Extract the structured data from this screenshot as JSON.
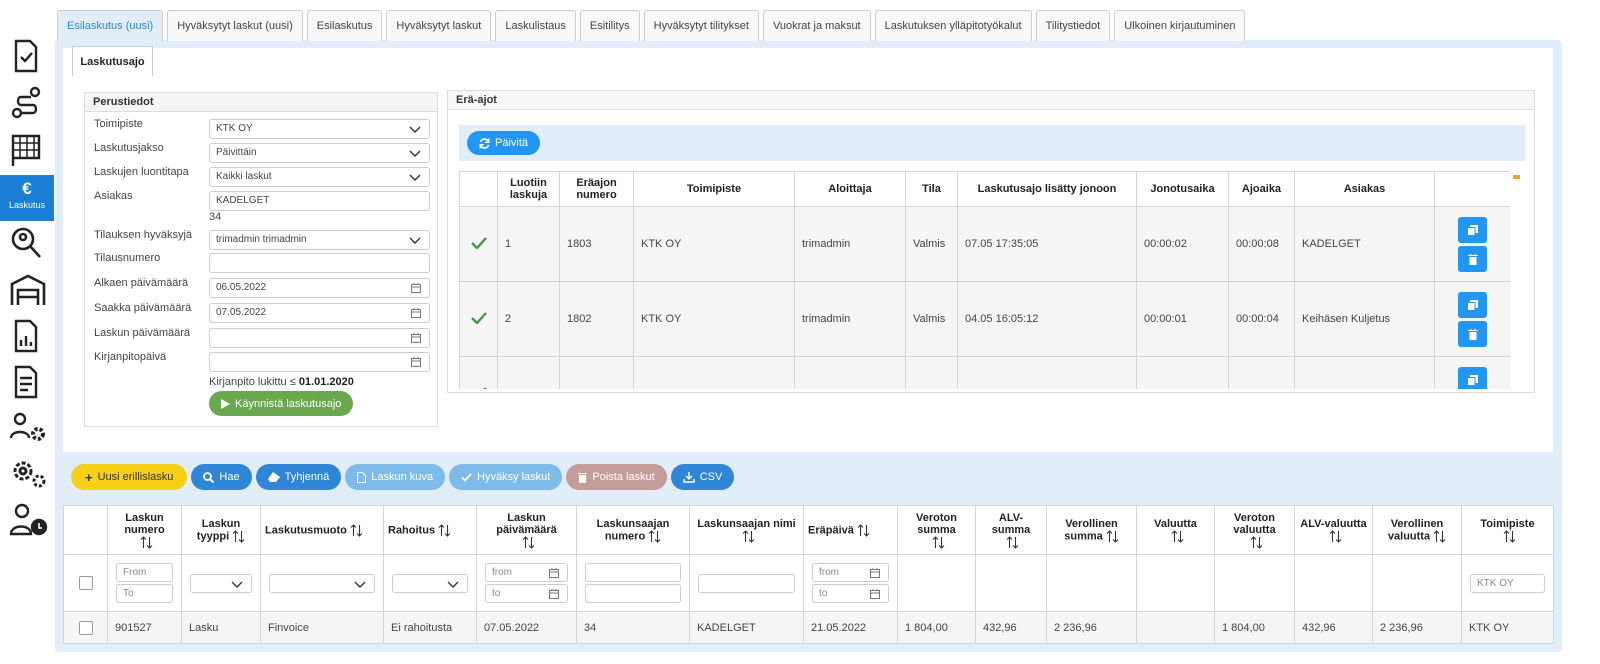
{
  "sidebar": {
    "active_icon": "€",
    "active_label": "Laskutus"
  },
  "tabs": [
    "Esilaskutus (uusi)",
    "Hyväksytyt laskut (uusi)",
    "Esilaskutus",
    "Hyväksytyt laskut",
    "Laskulistaus",
    "Esitilitys",
    "Hyväksytyt tilitykset",
    "Vuokrat ja maksut",
    "Laskutuksen ylläpitotyökalut",
    "Tilitystiedot",
    "Ulkoinen kirjautuminen"
  ],
  "subtab": "Laskutusajo",
  "perustiedot": {
    "title": "Perustiedot",
    "fields": [
      {
        "label": "Toimipiste",
        "value": "KTK OY"
      },
      {
        "label": "Laskutusjakso",
        "value": "Päivittäin"
      },
      {
        "label": "Laskujen luontitapa",
        "value": "Kaikki laskut"
      },
      {
        "label": "Asiakas",
        "value": "KADELGET",
        "note": "34"
      },
      {
        "label": "Tilauksen hyväksyjä",
        "value": "trimadmin trimadmin"
      },
      {
        "label": "Tilausnumero"
      },
      {
        "label": "Alkaen päivämäärä",
        "value": "06.05.2022"
      },
      {
        "label": "Saakka päivämäärä",
        "value": "07.05.2022"
      },
      {
        "label": "Laskun päivämäärä"
      },
      {
        "label": "Kirjanpitopäivä"
      }
    ],
    "lock_text": "Kirjanpito lukittu ≤",
    "lock_date": "01.01.2020",
    "start_button": "Käynnistä laskutusajo"
  },
  "era_ajot": {
    "title": "Erä-ajot",
    "refresh_button": "Päivitä",
    "headers": [
      "Luotiin laskuja",
      "Eräajon numero",
      "Toimipiste",
      "Aloittaja",
      "Tila",
      "Laskutusajo lisätty jonoon",
      "Jonotusaika",
      "Ajoaika",
      "Asiakas"
    ],
    "rows": [
      [
        "1",
        "1803",
        "KTK OY",
        "trimadmin",
        "Valmis",
        "07.05 17:35:05",
        "00:00:02",
        "00:00:08",
        "KADELGET"
      ],
      [
        "2",
        "1802",
        "KTK OY",
        "trimadmin",
        "Valmis",
        "04.05 16:05:12",
        "00:00:01",
        "00:00:04",
        "Keihäsen Kuljetus"
      ]
    ]
  },
  "toolbar": [
    "Uusi erillislasku",
    "Hae",
    "Tyhjennä",
    "Laskun kuva",
    "Hyväksy laskut",
    "Poista laskut",
    "CSV"
  ],
  "invoices": {
    "headers": [
      "Laskun numero",
      "Laskun tyyppi",
      "Laskutusmuoto",
      "Rahoitus",
      "Laskun päivämäärä",
      "Laskunsaajan numero",
      "Laskunsaajan nimi",
      "Eräpäivä",
      "Veroton summa",
      "ALV-summa",
      "Verollinen summa",
      "Valuutta",
      "Veroton valuutta",
      "ALV-valuutta",
      "Verollinen valuutta",
      "Toimipiste"
    ],
    "filter_texts": [
      "From",
      "To",
      "from",
      "to",
      "from",
      "to",
      "KTK OY"
    ],
    "rows": [
      [
        "901527",
        "Lasku",
        "Finvoice",
        "Ei rahoitusta",
        "07.05.2022",
        "34",
        "KADELGET",
        "21.05.2022",
        "1 804,00",
        "432,96",
        "2 236,96",
        null,
        "1 804,00",
        "432,96",
        "2 236,96",
        "KTK OY"
      ]
    ]
  }
}
